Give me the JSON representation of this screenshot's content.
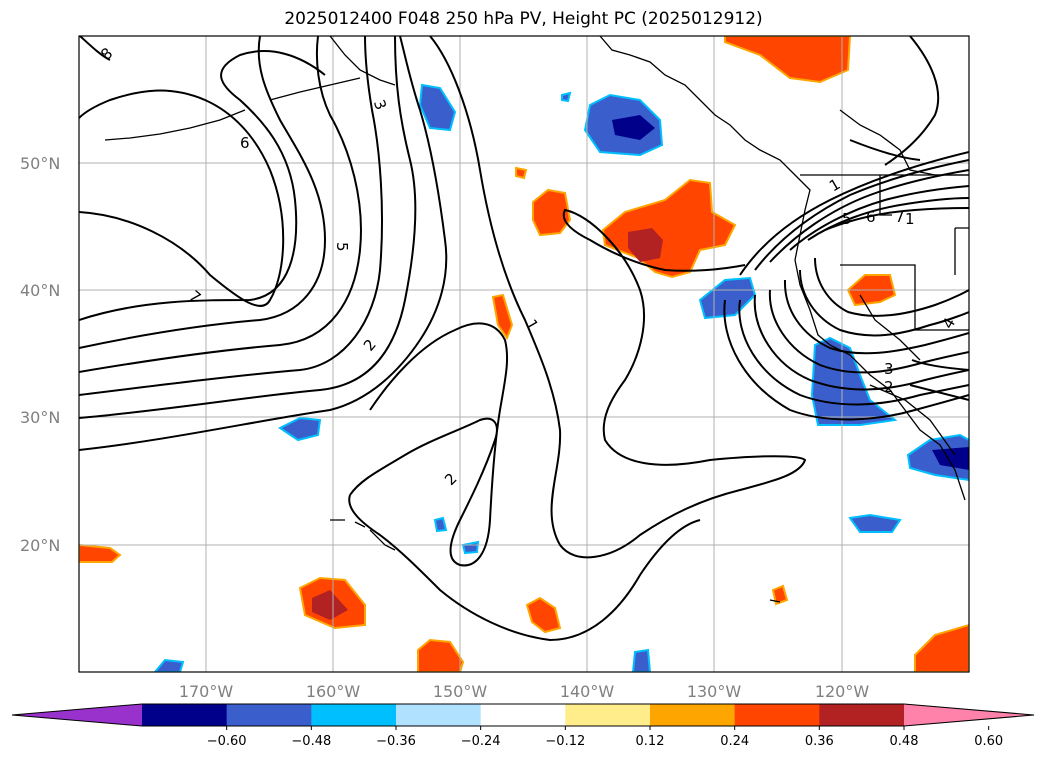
{
  "title": "2025012400 F048 250 hPa PV, Height PC (2025012912)",
  "map": {
    "lon_range": [
      -180,
      -110
    ],
    "lat_range": [
      10,
      60
    ],
    "gridlines": true,
    "lat_labels": [
      "50°N",
      "40°N",
      "30°N",
      "20°N"
    ],
    "lon_labels": [
      "170°W",
      "160°W",
      "150°W",
      "140°W",
      "130°W",
      "120°W"
    ]
  },
  "contour_labels": [
    "8",
    "7",
    "6",
    "5",
    "3",
    "2",
    "2",
    "1",
    "1",
    "2",
    "3",
    "4",
    "5",
    "6",
    "7",
    "1"
  ],
  "colorbar": {
    "ticks": [
      "−0.60",
      "−0.48",
      "−0.36",
      "−0.24",
      "−0.12",
      "0.12",
      "0.24",
      "0.36",
      "0.48",
      "0.60"
    ],
    "colors": [
      "#9932cc",
      "#00008b",
      "#3a5fcd",
      "#00bfff",
      "#b0e2ff",
      "#ffffff",
      "#ffec8b",
      "#ffa500",
      "#ff4500",
      "#b22222",
      "#ff82ab"
    ]
  }
}
